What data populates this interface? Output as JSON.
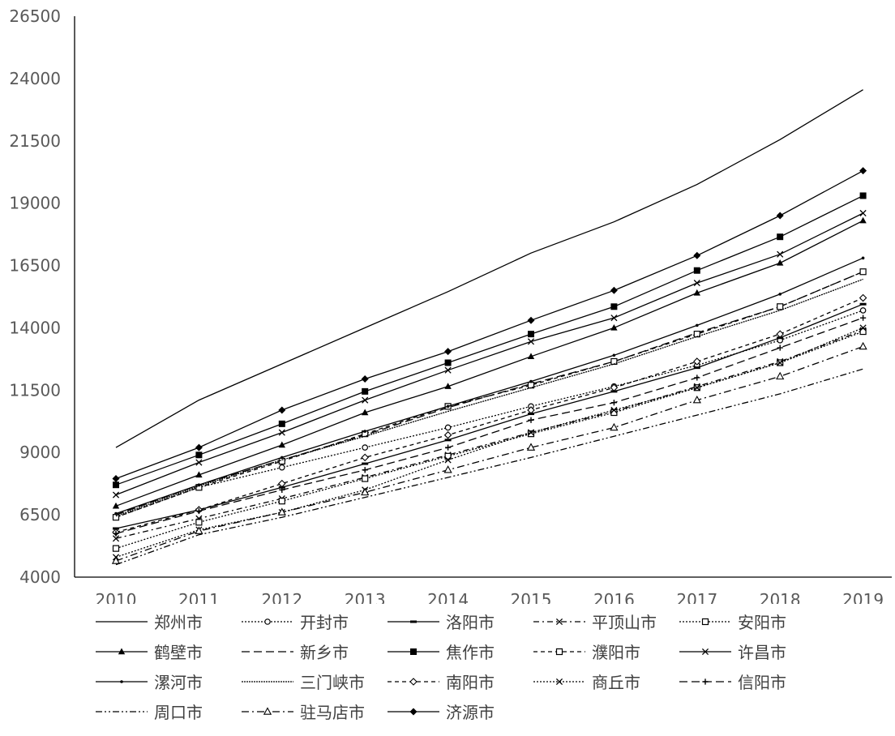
{
  "chart_data": {
    "type": "line",
    "title": "",
    "xlabel": "",
    "ylabel": "",
    "categories": [
      "2010",
      "2011",
      "2012",
      "2013",
      "2014",
      "2015",
      "2016",
      "2017",
      "2018",
      "2019"
    ],
    "ylim": [
      4000,
      26500
    ],
    "yticks": [
      4000,
      6500,
      9000,
      11500,
      14000,
      16500,
      19000,
      21500,
      24000,
      26500
    ],
    "grid": false,
    "legend_position": "bottom",
    "series": [
      {
        "name": "郑州市",
        "dash": "solid",
        "marker": "none",
        "values": [
          9200,
          11100,
          12550,
          14000,
          15450,
          17000,
          18250,
          19750,
          21550,
          23550
        ]
      },
      {
        "name": "开封市",
        "dash": "dot",
        "marker": "circle",
        "values": [
          6400,
          7600,
          8400,
          9200,
          10000,
          10850,
          11650,
          12500,
          13500,
          14700
        ]
      },
      {
        "name": "洛阳市",
        "dash": "solid",
        "marker": "dash",
        "values": [
          5950,
          6700,
          7600,
          8550,
          9500,
          10550,
          11450,
          12400,
          13600,
          14950
        ]
      },
      {
        "name": "平顶山市",
        "dash": "dashdot2",
        "marker": "x",
        "values": [
          5550,
          6350,
          7150,
          8000,
          8900,
          9800,
          10650,
          11650,
          12650,
          13900
        ]
      },
      {
        "name": "安阳市",
        "dash": "dot",
        "marker": "square-open",
        "values": [
          5150,
          6200,
          7050,
          7950,
          8850,
          9750,
          10600,
          11600,
          12600,
          13850
        ]
      },
      {
        "name": "鹤壁市",
        "dash": "solid",
        "marker": "triangle",
        "values": [
          6850,
          8100,
          9300,
          10600,
          11650,
          12850,
          14000,
          15400,
          16600,
          18300
        ]
      },
      {
        "name": "新乡市",
        "dash": "longdash",
        "marker": "none",
        "values": [
          6500,
          7700,
          8700,
          9700,
          10800,
          11750,
          12650,
          13800,
          14850,
          16250
        ]
      },
      {
        "name": "焦作市",
        "dash": "solid",
        "marker": "square",
        "values": [
          7700,
          8900,
          10150,
          11450,
          12600,
          13750,
          14850,
          16300,
          17650,
          19300
        ]
      },
      {
        "name": "濮阳市",
        "dash": "shortdash",
        "marker": "square-open",
        "values": [
          6400,
          7600,
          8650,
          9750,
          10850,
          11700,
          12650,
          13750,
          14850,
          16250
        ]
      },
      {
        "name": "许昌市",
        "dash": "solid",
        "marker": "x",
        "values": [
          7300,
          8600,
          9800,
          11100,
          12300,
          13450,
          14400,
          15800,
          16950,
          18600
        ]
      },
      {
        "name": "漯河市",
        "dash": "solid",
        "marker": "dot",
        "values": [
          6550,
          7700,
          8800,
          9850,
          10850,
          11850,
          12900,
          14100,
          15350,
          16800
        ]
      },
      {
        "name": "三门峡市",
        "dash": "dense",
        "marker": "none",
        "values": [
          6450,
          7650,
          8700,
          9650,
          10650,
          11600,
          12550,
          13650,
          14700,
          15950
        ]
      },
      {
        "name": "南阳市",
        "dash": "shortdash",
        "marker": "diamond-open",
        "values": [
          5800,
          6700,
          7750,
          8800,
          9700,
          10700,
          11600,
          12650,
          13750,
          15200
        ]
      },
      {
        "name": "商丘市",
        "dash": "dot",
        "marker": "x",
        "values": [
          4800,
          5900,
          6600,
          7500,
          8700,
          9800,
          10700,
          11600,
          12600,
          14000
        ]
      },
      {
        "name": "信阳市",
        "dash": "longdash",
        "marker": "plus",
        "values": [
          5750,
          6650,
          7500,
          8300,
          9200,
          10300,
          11000,
          12000,
          13200,
          14400
        ]
      },
      {
        "name": "周口市",
        "dash": "dashdotdot",
        "marker": "none",
        "values": [
          4500,
          5700,
          6400,
          7200,
          8000,
          8800,
          9650,
          10500,
          11350,
          12350
        ]
      },
      {
        "name": "驻马店市",
        "dash": "dashdot",
        "marker": "triangle-open",
        "values": [
          4650,
          5850,
          6600,
          7400,
          8300,
          9200,
          10000,
          11100,
          12050,
          13250
        ]
      },
      {
        "name": "济源市",
        "dash": "solid",
        "marker": "diamond",
        "values": [
          7950,
          9200,
          10700,
          11950,
          13050,
          14300,
          15500,
          16900,
          18500,
          20300
        ]
      }
    ]
  }
}
